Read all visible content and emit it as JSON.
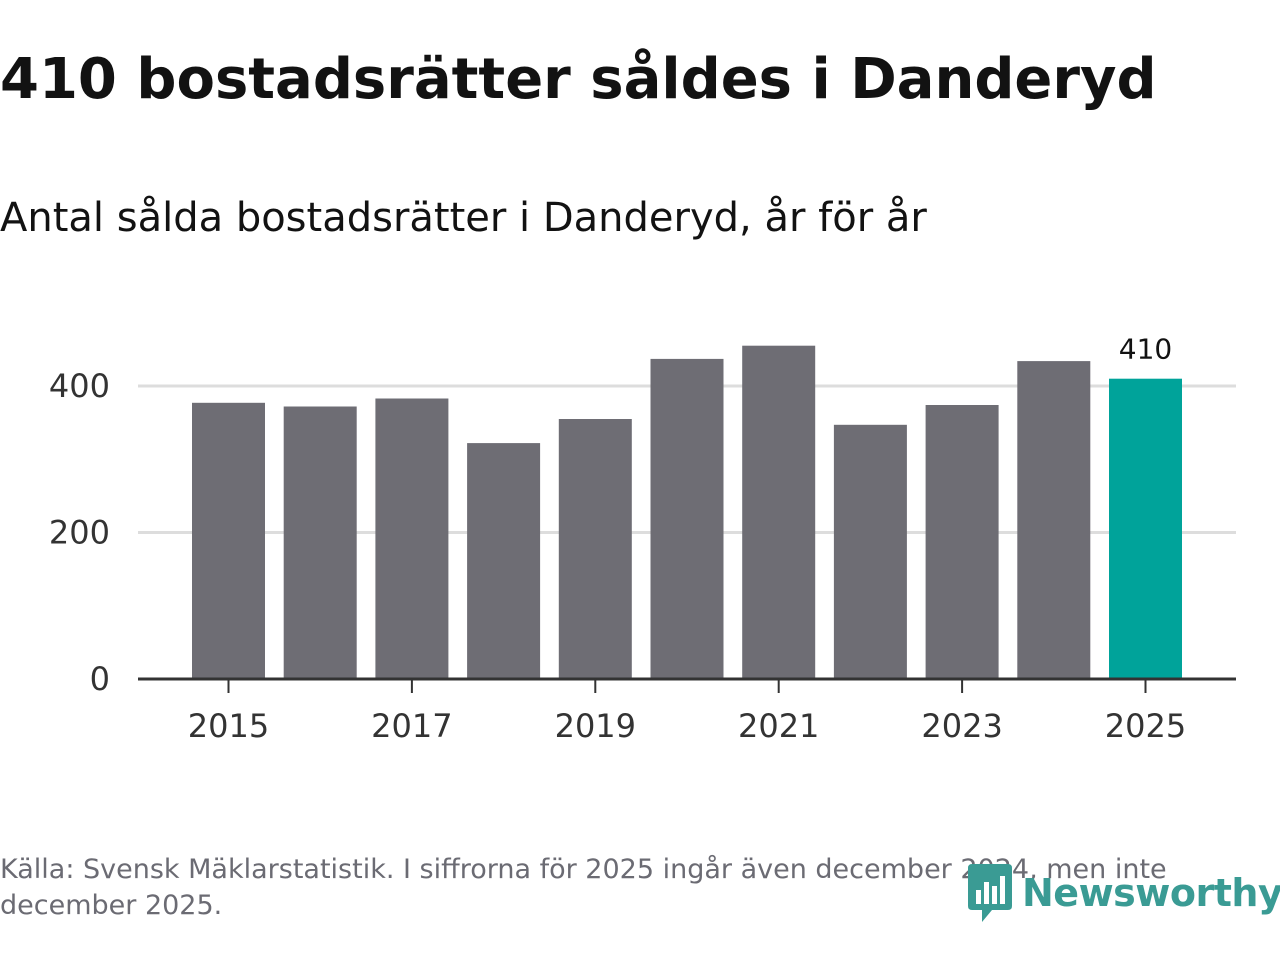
{
  "header": {
    "title": "410 bostadsrätter såldes i Danderyd",
    "subtitle": "Antal sålda bostadsrätter i Danderyd, år för år"
  },
  "chart_data": {
    "type": "bar",
    "title": "410 bostadsrätter såldes i Danderyd",
    "subtitle": "Antal sålda bostadsrätter i Danderyd, år för år",
    "xlabel": "",
    "ylabel": "",
    "categories": [
      "2015",
      "2016",
      "2017",
      "2018",
      "2019",
      "2020",
      "2021",
      "2022",
      "2023",
      "2024",
      "2025"
    ],
    "values": [
      377,
      372,
      383,
      322,
      355,
      437,
      455,
      347,
      374,
      434,
      410
    ],
    "ylim": [
      0,
      450
    ],
    "yticks": [
      0,
      200,
      400
    ],
    "xtick_labels": [
      "2015",
      "2017",
      "2019",
      "2021",
      "2023",
      "2025"
    ],
    "highlight_index": 10,
    "highlight_label": "410",
    "grid": true,
    "colors": {
      "bar": "#6e6d74",
      "highlight": "#00a39a",
      "grid": "#dddddd",
      "axis": "#333333"
    }
  },
  "footer": {
    "source": "Källa: Svensk Mäklarstatistik. I siffrorna för 2025 ingår även december 2024, men inte december 2025."
  },
  "logo": {
    "text": "Newsworthy",
    "icon": "newsworthy-logo-icon",
    "color": "#3a9b94"
  }
}
